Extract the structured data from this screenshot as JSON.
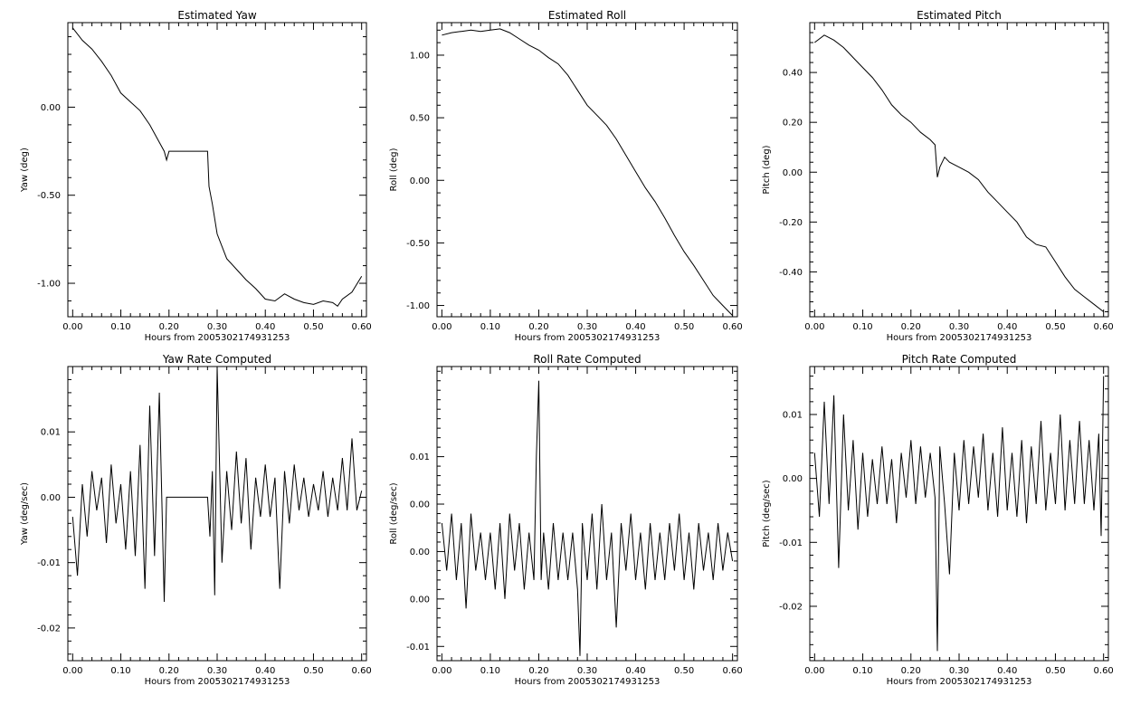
{
  "chart_data": [
    {
      "type": "line",
      "title": "Estimated Yaw",
      "xlabel": "Hours from 2005302174931253",
      "ylabel": "Yaw (deg)",
      "xlim": [
        -0.01,
        0.61
      ],
      "ylim": [
        -1.19,
        0.48
      ],
      "xticks": [
        "0.00",
        "0.10",
        "0.20",
        "0.30",
        "0.40",
        "0.50",
        "0.60"
      ],
      "yticks": [
        {
          "v": 0.0,
          "label": "0.00"
        },
        {
          "v": -0.5,
          "label": "-0.50"
        },
        {
          "v": -1.0,
          "label": "-1.00"
        }
      ],
      "series": [
        {
          "x": [
            0,
            0.02,
            0.04,
            0.06,
            0.08,
            0.1,
            0.12,
            0.14,
            0.16,
            0.18,
            0.19,
            0.195,
            0.2,
            0.28,
            0.283,
            0.29,
            0.3,
            0.32,
            0.34,
            0.36,
            0.38,
            0.4,
            0.42,
            0.44,
            0.46,
            0.48,
            0.5,
            0.52,
            0.54,
            0.55,
            0.56,
            0.58,
            0.6
          ],
          "y": [
            0.45,
            0.38,
            0.33,
            0.26,
            0.18,
            0.08,
            0.03,
            -0.02,
            -0.1,
            -0.2,
            -0.25,
            -0.3,
            -0.25,
            -0.25,
            -0.45,
            -0.55,
            -0.72,
            -0.86,
            -0.92,
            -0.98,
            -1.03,
            -1.09,
            -1.1,
            -1.06,
            -1.09,
            -1.11,
            -1.12,
            -1.1,
            -1.11,
            -1.13,
            -1.09,
            -1.05,
            -0.96
          ]
        }
      ]
    },
    {
      "type": "line",
      "title": "Estimated Roll",
      "xlabel": "Hours from 2005302174931253",
      "ylabel": "Roll (deg)",
      "xlim": [
        -0.01,
        0.61
      ],
      "ylim": [
        -1.09,
        1.26
      ],
      "xticks": [
        "0.00",
        "0.10",
        "0.20",
        "0.30",
        "0.40",
        "0.50",
        "0.60"
      ],
      "yticks": [
        {
          "v": 1.0,
          "label": "1.00"
        },
        {
          "v": 0.5,
          "label": "0.50"
        },
        {
          "v": 0.0,
          "label": "0.00"
        },
        {
          "v": -0.5,
          "label": "-0.50"
        },
        {
          "v": -1.0,
          "label": "-1.00"
        }
      ],
      "series": [
        {
          "x": [
            0,
            0.02,
            0.04,
            0.06,
            0.08,
            0.1,
            0.12,
            0.14,
            0.16,
            0.18,
            0.2,
            0.22,
            0.24,
            0.26,
            0.28,
            0.3,
            0.32,
            0.34,
            0.36,
            0.38,
            0.4,
            0.42,
            0.44,
            0.46,
            0.48,
            0.5,
            0.52,
            0.54,
            0.56,
            0.58,
            0.6
          ],
          "y": [
            1.16,
            1.18,
            1.19,
            1.2,
            1.19,
            1.2,
            1.21,
            1.18,
            1.13,
            1.08,
            1.04,
            0.98,
            0.93,
            0.84,
            0.72,
            0.6,
            0.52,
            0.44,
            0.33,
            0.2,
            0.07,
            -0.06,
            -0.17,
            -0.3,
            -0.44,
            -0.57,
            -0.68,
            -0.8,
            -0.92,
            -1.0,
            -1.08
          ]
        }
      ]
    },
    {
      "type": "line",
      "title": "Estimated Pitch",
      "xlabel": "Hours from 2005302174931253",
      "ylabel": "Pitch (deg)",
      "xlim": [
        -0.01,
        0.61
      ],
      "ylim": [
        -0.58,
        0.6
      ],
      "xticks": [
        "0.00",
        "0.10",
        "0.20",
        "0.30",
        "0.40",
        "0.50",
        "0.60"
      ],
      "yticks": [
        {
          "v": 0.4,
          "label": "0.40"
        },
        {
          "v": 0.2,
          "label": "0.20"
        },
        {
          "v": 0.0,
          "label": "0.00"
        },
        {
          "v": -0.2,
          "label": "-0.20"
        },
        {
          "v": -0.4,
          "label": "-0.40"
        }
      ],
      "series": [
        {
          "x": [
            0,
            0.02,
            0.04,
            0.06,
            0.08,
            0.1,
            0.12,
            0.14,
            0.16,
            0.18,
            0.2,
            0.22,
            0.24,
            0.25,
            0.255,
            0.26,
            0.27,
            0.28,
            0.3,
            0.32,
            0.34,
            0.36,
            0.38,
            0.4,
            0.42,
            0.44,
            0.46,
            0.48,
            0.5,
            0.52,
            0.54,
            0.56,
            0.58,
            0.6
          ],
          "y": [
            0.52,
            0.55,
            0.53,
            0.5,
            0.46,
            0.42,
            0.38,
            0.33,
            0.27,
            0.23,
            0.2,
            0.16,
            0.13,
            0.11,
            -0.02,
            0.02,
            0.06,
            0.04,
            0.02,
            0.0,
            -0.03,
            -0.08,
            -0.12,
            -0.16,
            -0.2,
            -0.26,
            -0.29,
            -0.3,
            -0.36,
            -0.42,
            -0.47,
            -0.5,
            -0.53,
            -0.56
          ]
        }
      ]
    },
    {
      "type": "line",
      "title": "Yaw Rate Computed",
      "xlabel": "Hours from 2005302174931253",
      "ylabel": "Yaw (deg/sec)",
      "xlim": [
        -0.01,
        0.61
      ],
      "ylim": [
        -0.025,
        0.02
      ],
      "xticks": [
        "0.00",
        "0.10",
        "0.20",
        "0.30",
        "0.40",
        "0.50",
        "0.60"
      ],
      "yticks": [
        {
          "v": 0.01,
          "label": "0.01"
        },
        {
          "v": 0.0,
          "label": "0.00"
        },
        {
          "v": -0.01,
          "label": "-0.01"
        },
        {
          "v": -0.02,
          "label": "-0.02"
        }
      ],
      "series": [
        {
          "x": [
            0,
            0.01,
            0.02,
            0.03,
            0.04,
            0.05,
            0.06,
            0.07,
            0.08,
            0.09,
            0.1,
            0.11,
            0.12,
            0.13,
            0.14,
            0.15,
            0.16,
            0.17,
            0.18,
            0.19,
            0.195,
            0.2,
            0.28,
            0.285,
            0.29,
            0.295,
            0.3,
            0.31,
            0.32,
            0.33,
            0.34,
            0.35,
            0.36,
            0.37,
            0.38,
            0.39,
            0.4,
            0.41,
            0.42,
            0.43,
            0.44,
            0.45,
            0.46,
            0.47,
            0.48,
            0.49,
            0.5,
            0.51,
            0.52,
            0.53,
            0.54,
            0.55,
            0.56,
            0.57,
            0.58,
            0.59,
            0.6
          ],
          "y": [
            -0.003,
            -0.012,
            0.002,
            -0.006,
            0.004,
            -0.002,
            0.003,
            -0.007,
            0.005,
            -0.004,
            0.002,
            -0.008,
            0.004,
            -0.009,
            0.008,
            -0.014,
            0.014,
            -0.009,
            0.016,
            -0.016,
            0.0,
            0.0,
            0.0,
            -0.006,
            0.004,
            -0.015,
            0.02,
            -0.01,
            0.004,
            -0.005,
            0.007,
            -0.004,
            0.006,
            -0.008,
            0.003,
            -0.003,
            0.005,
            -0.003,
            0.003,
            -0.014,
            0.004,
            -0.004,
            0.005,
            -0.002,
            0.003,
            -0.003,
            0.002,
            -0.002,
            0.004,
            -0.003,
            0.003,
            -0.002,
            0.006,
            -0.002,
            0.009,
            -0.002,
            0.001
          ]
        }
      ]
    },
    {
      "type": "line",
      "title": "Roll Rate Computed",
      "xlabel": "Hours from 2005302174931253",
      "ylabel": "Roll (deg/sec)",
      "xlim": [
        -0.01,
        0.61
      ],
      "ylim": [
        -0.0115,
        0.0195
      ],
      "xticks": [
        "0.00",
        "0.10",
        "0.20",
        "0.30",
        "0.40",
        "0.50",
        "0.60"
      ],
      "yticks": [
        {
          "v": 0.01,
          "label": "0.01"
        },
        {
          "v": 0.005,
          "label": "0.00"
        },
        {
          "v": 0.0,
          "label": "0.00"
        },
        {
          "v": -0.005,
          "label": "0.00"
        },
        {
          "v": -0.01,
          "label": "-0.01"
        }
      ],
      "series": [
        {
          "x": [
            0,
            0.01,
            0.02,
            0.03,
            0.04,
            0.05,
            0.06,
            0.07,
            0.08,
            0.09,
            0.1,
            0.11,
            0.12,
            0.13,
            0.14,
            0.15,
            0.16,
            0.17,
            0.18,
            0.19,
            0.195,
            0.2,
            0.205,
            0.21,
            0.22,
            0.23,
            0.24,
            0.25,
            0.26,
            0.27,
            0.28,
            0.285,
            0.29,
            0.3,
            0.31,
            0.32,
            0.33,
            0.34,
            0.35,
            0.36,
            0.37,
            0.38,
            0.39,
            0.4,
            0.41,
            0.42,
            0.43,
            0.44,
            0.45,
            0.46,
            0.47,
            0.48,
            0.49,
            0.5,
            0.51,
            0.52,
            0.53,
            0.54,
            0.55,
            0.56,
            0.57,
            0.58,
            0.59,
            0.6
          ],
          "y": [
            0.003,
            -0.002,
            0.004,
            -0.003,
            0.003,
            -0.006,
            0.004,
            -0.002,
            0.002,
            -0.003,
            0.002,
            -0.004,
            0.003,
            -0.005,
            0.004,
            -0.002,
            0.003,
            -0.004,
            0.002,
            -0.003,
            0.01,
            0.018,
            -0.003,
            0.002,
            -0.004,
            0.003,
            -0.003,
            0.002,
            -0.003,
            0.002,
            -0.004,
            -0.011,
            0.003,
            -0.003,
            0.004,
            -0.004,
            0.005,
            -0.003,
            0.002,
            -0.008,
            0.003,
            -0.002,
            0.004,
            -0.003,
            0.002,
            -0.004,
            0.003,
            -0.003,
            0.002,
            -0.003,
            0.003,
            -0.002,
            0.004,
            -0.003,
            0.002,
            -0.004,
            0.003,
            -0.002,
            0.002,
            -0.003,
            0.003,
            -0.002,
            0.002,
            -0.001
          ]
        }
      ]
    },
    {
      "type": "line",
      "title": "Pitch Rate Computed",
      "xlabel": "Hours from 2005302174931253",
      "ylabel": "Pitch (deg/sec)",
      "xlim": [
        -0.01,
        0.61
      ],
      "ylim": [
        -0.0285,
        0.0175
      ],
      "xticks": [
        "0.00",
        "0.10",
        "0.20",
        "0.30",
        "0.40",
        "0.50",
        "0.60"
      ],
      "yticks": [
        {
          "v": 0.01,
          "label": "0.01"
        },
        {
          "v": 0.0,
          "label": "0.00"
        },
        {
          "v": -0.01,
          "label": "-0.01"
        },
        {
          "v": -0.02,
          "label": "-0.02"
        }
      ],
      "series": [
        {
          "x": [
            0,
            0.01,
            0.02,
            0.03,
            0.04,
            0.05,
            0.06,
            0.07,
            0.08,
            0.09,
            0.1,
            0.11,
            0.12,
            0.13,
            0.14,
            0.15,
            0.16,
            0.17,
            0.18,
            0.19,
            0.2,
            0.21,
            0.22,
            0.23,
            0.24,
            0.25,
            0.255,
            0.26,
            0.27,
            0.28,
            0.29,
            0.3,
            0.31,
            0.32,
            0.33,
            0.34,
            0.35,
            0.36,
            0.37,
            0.38,
            0.39,
            0.4,
            0.41,
            0.42,
            0.43,
            0.44,
            0.45,
            0.46,
            0.47,
            0.48,
            0.49,
            0.5,
            0.51,
            0.52,
            0.53,
            0.54,
            0.55,
            0.56,
            0.57,
            0.58,
            0.59,
            0.595,
            0.6
          ],
          "y": [
            0.004,
            -0.006,
            0.012,
            -0.004,
            0.013,
            -0.014,
            0.01,
            -0.005,
            0.006,
            -0.008,
            0.004,
            -0.006,
            0.003,
            -0.004,
            0.005,
            -0.004,
            0.003,
            -0.007,
            0.004,
            -0.003,
            0.006,
            -0.004,
            0.005,
            -0.003,
            0.004,
            -0.003,
            -0.027,
            0.005,
            -0.004,
            -0.015,
            0.004,
            -0.005,
            0.006,
            -0.004,
            0.005,
            -0.003,
            0.007,
            -0.005,
            0.004,
            -0.006,
            0.008,
            -0.005,
            0.004,
            -0.006,
            0.006,
            -0.007,
            0.005,
            -0.004,
            0.009,
            -0.005,
            0.004,
            -0.004,
            0.01,
            -0.005,
            0.006,
            -0.004,
            0.009,
            -0.004,
            0.006,
            -0.005,
            0.007,
            -0.009,
            0.016
          ]
        }
      ]
    }
  ]
}
